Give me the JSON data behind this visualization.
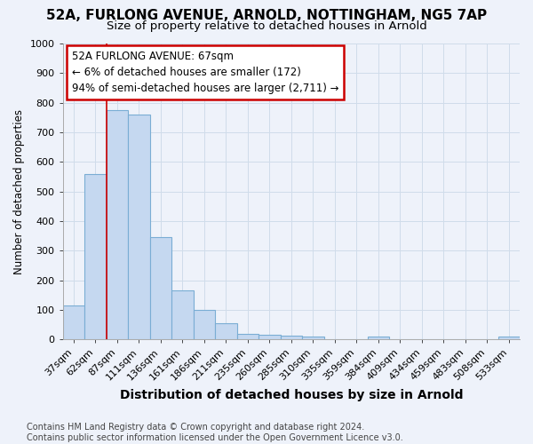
{
  "title1": "52A, FURLONG AVENUE, ARNOLD, NOTTINGHAM, NG5 7AP",
  "title2": "Size of property relative to detached houses in Arnold",
  "xlabel": "Distribution of detached houses by size in Arnold",
  "ylabel": "Number of detached properties",
  "categories": [
    "37sqm",
    "62sqm",
    "87sqm",
    "111sqm",
    "136sqm",
    "161sqm",
    "186sqm",
    "211sqm",
    "235sqm",
    "260sqm",
    "285sqm",
    "310sqm",
    "335sqm",
    "359sqm",
    "384sqm",
    "409sqm",
    "434sqm",
    "459sqm",
    "483sqm",
    "508sqm",
    "533sqm"
  ],
  "values": [
    115,
    560,
    775,
    760,
    345,
    165,
    100,
    55,
    20,
    15,
    12,
    10,
    0,
    0,
    10,
    0,
    0,
    0,
    0,
    0,
    10
  ],
  "bar_color": "#c5d8f0",
  "bar_edge_color": "#7aadd4",
  "grid_color": "#d0dcea",
  "background_color": "#eef2fa",
  "annotation_text": "52A FURLONG AVENUE: 67sqm\n← 6% of detached houses are smaller (172)\n94% of semi-detached houses are larger (2,711) →",
  "annotation_box_color": "#ffffff",
  "annotation_box_edge": "#cc0000",
  "red_line_x": 1.5,
  "ylim": [
    0,
    1000
  ],
  "yticks": [
    0,
    100,
    200,
    300,
    400,
    500,
    600,
    700,
    800,
    900,
    1000
  ],
  "footnote": "Contains HM Land Registry data © Crown copyright and database right 2024.\nContains public sector information licensed under the Open Government Licence v3.0.",
  "title1_fontsize": 11,
  "title2_fontsize": 9.5,
  "xlabel_fontsize": 10,
  "ylabel_fontsize": 8.5,
  "tick_fontsize": 8,
  "annot_fontsize": 8.5,
  "footnote_fontsize": 7
}
